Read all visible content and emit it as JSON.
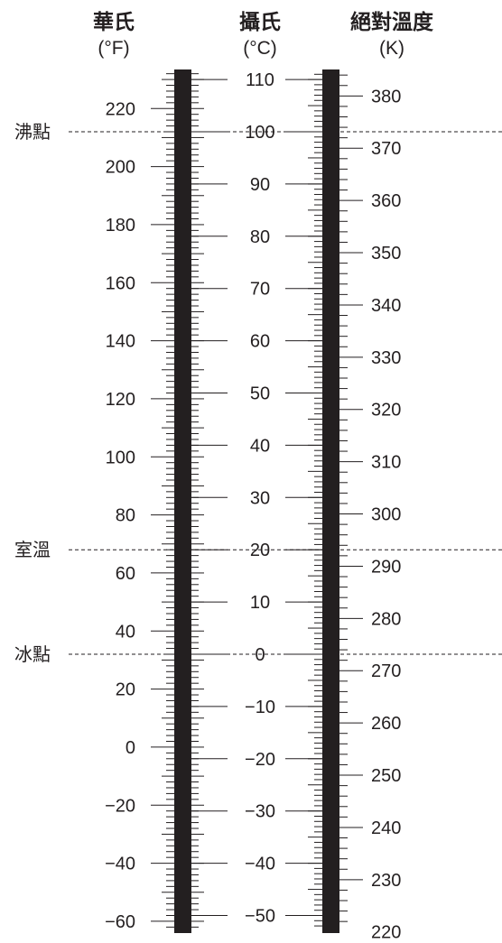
{
  "headers": {
    "fahrenheit": {
      "title": "華氏",
      "unit": "(°F)"
    },
    "celsius": {
      "title": "攝氏",
      "unit": "(°C)"
    },
    "kelvin": {
      "title": "絕對溫度",
      "unit": "(K)"
    }
  },
  "reference_lines": [
    {
      "label": "沸點",
      "celsius": 100
    },
    {
      "label": "室溫",
      "celsius": 20
    },
    {
      "label": "冰點",
      "celsius": 0
    }
  ],
  "scales": {
    "fahrenheit": {
      "labels": [
        220,
        200,
        180,
        160,
        140,
        120,
        100,
        80,
        60,
        40,
        20,
        0,
        -20,
        -40,
        -60
      ]
    },
    "celsius": {
      "labels": [
        110,
        100,
        90,
        80,
        70,
        60,
        50,
        40,
        30,
        20,
        10,
        0,
        -10,
        -20,
        -30,
        -40,
        -50
      ]
    },
    "kelvin": {
      "labels": [
        380,
        370,
        360,
        350,
        340,
        330,
        320,
        310,
        300,
        290,
        280,
        270,
        260,
        250,
        240,
        230,
        220
      ]
    }
  },
  "colors": {
    "bar": "#231f20",
    "ink": "#231f20"
  }
}
